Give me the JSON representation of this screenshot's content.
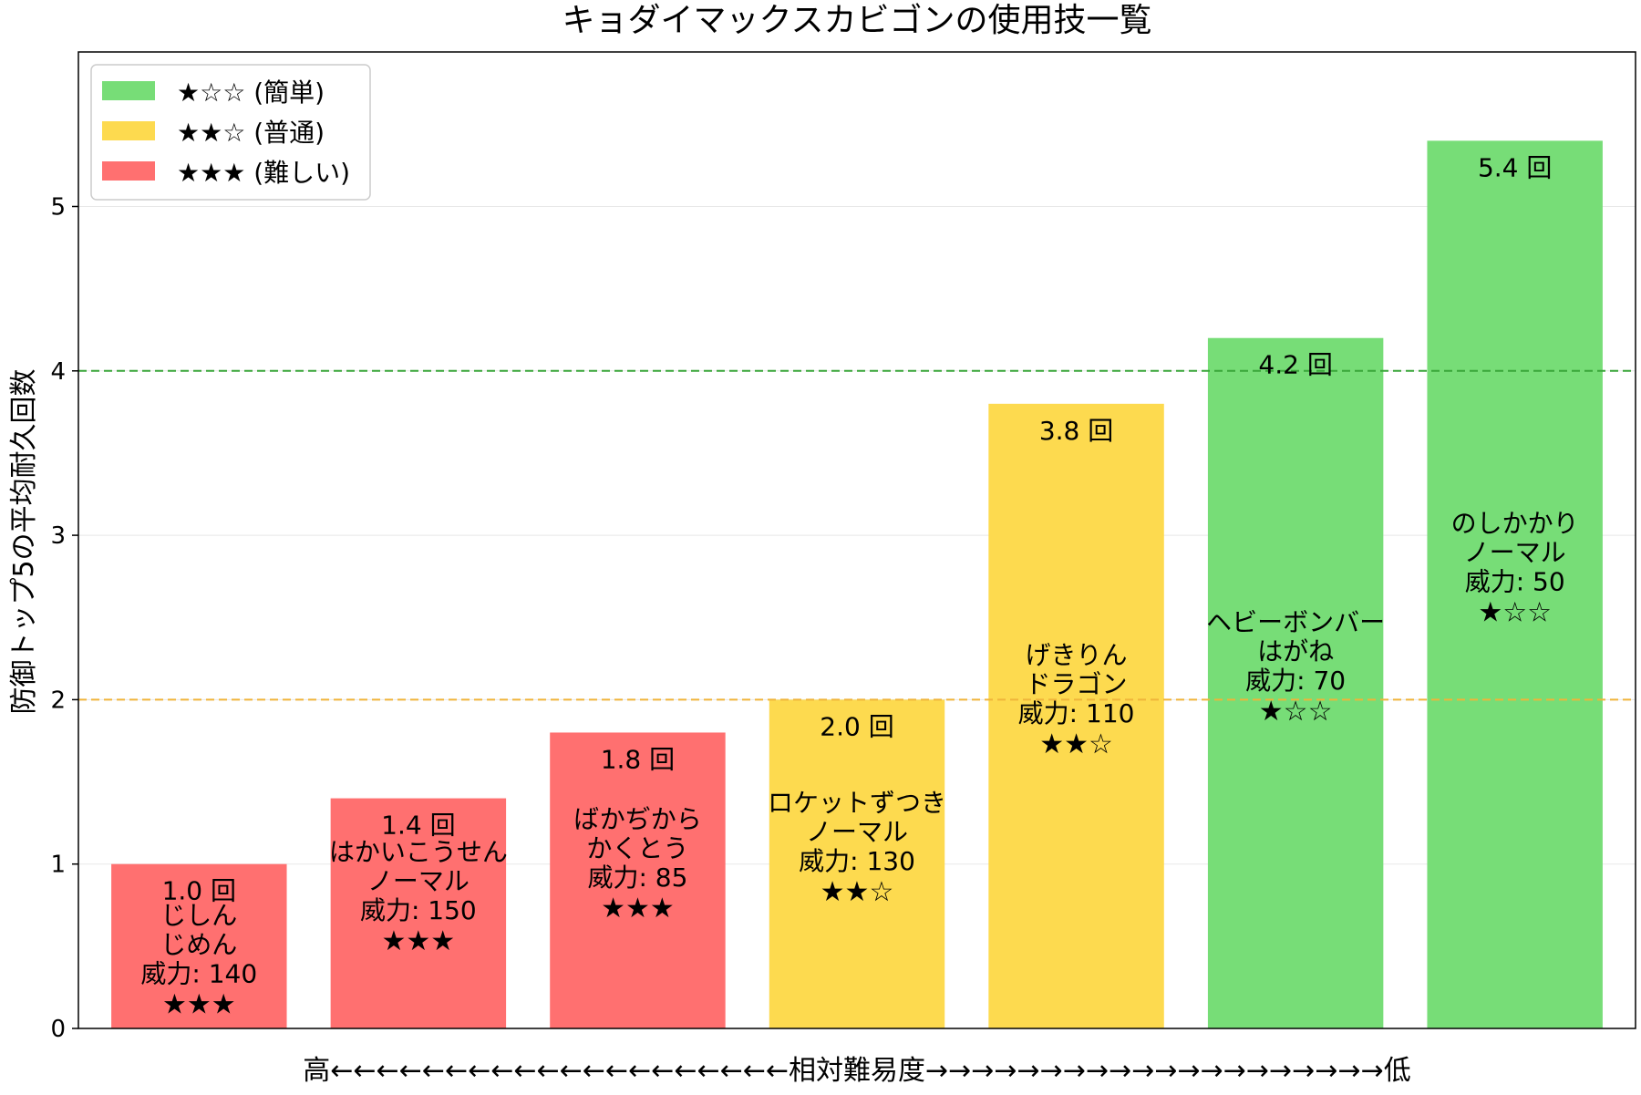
{
  "chart_data": {
    "type": "bar",
    "title": "キョダイマックスカビゴンの使用技一覧",
    "ylabel": "防御トップ5の平均耐久回数",
    "xlabel": "高←←←←←←←←←←←←←←←←←←←←相対難易度→→→→→→→→→→→→→→→→→→→→低",
    "ylim": [
      0,
      5.94
    ],
    "yticks": [
      0,
      1,
      2,
      3,
      4,
      5
    ],
    "grid": "horizontal",
    "legend_position": "top-left",
    "legend": [
      {
        "label": "★☆☆ (簡単)",
        "color": "#77dd77"
      },
      {
        "label": "★★☆ (普通)",
        "color": "#fdda4f"
      },
      {
        "label": "★★★ (難しい)",
        "color": "#ff7070"
      }
    ],
    "reference_lines": [
      {
        "value": 4,
        "color": "#3aa63a"
      },
      {
        "value": 2,
        "color": "#f0b43a"
      }
    ],
    "bars": [
      {
        "value": 1.0,
        "value_label": "1.0 回",
        "move": "じしん",
        "type": "じめん",
        "power": "威力: 140",
        "stars": "★★★",
        "color": "#ff7070"
      },
      {
        "value": 1.4,
        "value_label": "1.4 回",
        "move": "はかいこうせん",
        "type": "ノーマル",
        "power": "威力: 150",
        "stars": "★★★",
        "color": "#ff7070"
      },
      {
        "value": 1.8,
        "value_label": "1.8 回",
        "move": "ばかぢから",
        "type": "かくとう",
        "power": "威力: 85",
        "stars": "★★★",
        "color": "#ff7070"
      },
      {
        "value": 2.0,
        "value_label": "2.0 回",
        "move": "ロケットずつき",
        "type": "ノーマル",
        "power": "威力: 130",
        "stars": "★★☆",
        "color": "#fdda4f"
      },
      {
        "value": 3.8,
        "value_label": "3.8 回",
        "move": "げきりん",
        "type": "ドラゴン",
        "power": "威力: 110",
        "stars": "★★☆",
        "color": "#fdda4f"
      },
      {
        "value": 4.2,
        "value_label": "4.2 回",
        "move": "ヘビーボンバー",
        "type": "はがね",
        "power": "威力: 70",
        "stars": "★☆☆",
        "color": "#77dd77"
      },
      {
        "value": 5.4,
        "value_label": "5.4 回",
        "move": "のしかかり",
        "type": "ノーマル",
        "power": "威力: 50",
        "stars": "★☆☆",
        "color": "#77dd77"
      }
    ]
  }
}
